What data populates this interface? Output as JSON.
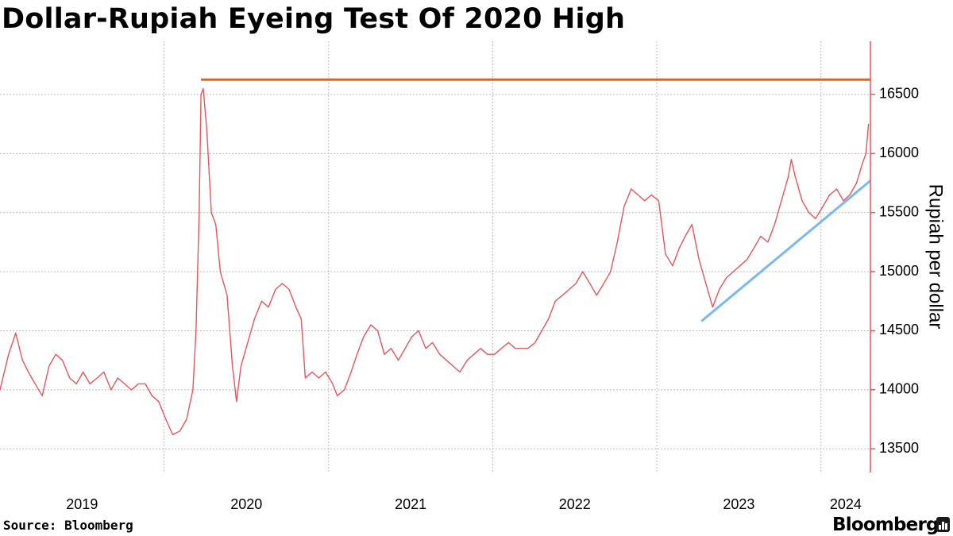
{
  "title": "Dollar-Rupiah Eyeing Test Of 2020 High",
  "source": "Source: Bloomberg",
  "brand": "Bloomberg",
  "colors": {
    "price": "#e8555a",
    "resistance": "#e8601c",
    "trend": "#79b9ef",
    "axis": "#e8555a",
    "grid": "#bdbdbd"
  },
  "chart_data": {
    "type": "line",
    "title": "Dollar-Rupiah Eyeing Test Of 2020 High",
    "xlabel": "",
    "ylabel": "Rupiah per dollar",
    "y_axis_side": "right",
    "ylim": [
      13300,
      16950
    ],
    "yticks": [
      13500,
      14000,
      14500,
      15000,
      15500,
      16000,
      16500
    ],
    "xlim": [
      "2019-01-01",
      "2024-04-20"
    ],
    "xticks": [
      "2019",
      "2020",
      "2021",
      "2022",
      "2023",
      "2024"
    ],
    "grid": true,
    "series": [
      {
        "name": "",
        "color": "#e8555a",
        "points": [
          [
            "2019-01-01",
            14000
          ],
          [
            "2019-01-20",
            14300
          ],
          [
            "2019-02-05",
            14480
          ],
          [
            "2019-02-20",
            14250
          ],
          [
            "2019-03-05",
            14150
          ],
          [
            "2019-03-20",
            14050
          ],
          [
            "2019-04-05",
            13950
          ],
          [
            "2019-04-20",
            14200
          ],
          [
            "2019-05-05",
            14300
          ],
          [
            "2019-05-20",
            14250
          ],
          [
            "2019-06-05",
            14100
          ],
          [
            "2019-06-20",
            14050
          ],
          [
            "2019-07-05",
            14150
          ],
          [
            "2019-07-20",
            14050
          ],
          [
            "2019-08-05",
            14100
          ],
          [
            "2019-08-20",
            14150
          ],
          [
            "2019-09-05",
            14000
          ],
          [
            "2019-09-20",
            14100
          ],
          [
            "2019-10-05",
            14050
          ],
          [
            "2019-10-20",
            14000
          ],
          [
            "2019-11-05",
            14050
          ],
          [
            "2019-11-20",
            14050
          ],
          [
            "2019-12-05",
            13950
          ],
          [
            "2019-12-20",
            13900
          ],
          [
            "2020-01-05",
            13750
          ],
          [
            "2020-01-20",
            13620
          ],
          [
            "2020-02-05",
            13650
          ],
          [
            "2020-02-20",
            13750
          ],
          [
            "2020-03-05",
            14000
          ],
          [
            "2020-03-12",
            14500
          ],
          [
            "2020-03-19",
            15500
          ],
          [
            "2020-03-23",
            16500
          ],
          [
            "2020-03-28",
            16550
          ],
          [
            "2020-04-05",
            16200
          ],
          [
            "2020-04-15",
            15500
          ],
          [
            "2020-04-25",
            15400
          ],
          [
            "2020-05-05",
            15000
          ],
          [
            "2020-05-20",
            14800
          ],
          [
            "2020-06-01",
            14200
          ],
          [
            "2020-06-10",
            13900
          ],
          [
            "2020-06-20",
            14200
          ],
          [
            "2020-07-05",
            14400
          ],
          [
            "2020-07-20",
            14600
          ],
          [
            "2020-08-05",
            14750
          ],
          [
            "2020-08-20",
            14700
          ],
          [
            "2020-09-05",
            14850
          ],
          [
            "2020-09-20",
            14900
          ],
          [
            "2020-10-05",
            14850
          ],
          [
            "2020-10-20",
            14700
          ],
          [
            "2020-11-01",
            14600
          ],
          [
            "2020-11-10",
            14100
          ],
          [
            "2020-11-25",
            14150
          ],
          [
            "2020-12-10",
            14100
          ],
          [
            "2020-12-25",
            14150
          ],
          [
            "2021-01-10",
            14050
          ],
          [
            "2021-01-20",
            13950
          ],
          [
            "2021-02-05",
            14000
          ],
          [
            "2021-02-20",
            14150
          ],
          [
            "2021-03-05",
            14300
          ],
          [
            "2021-03-20",
            14450
          ],
          [
            "2021-04-05",
            14550
          ],
          [
            "2021-04-20",
            14500
          ],
          [
            "2021-05-05",
            14300
          ],
          [
            "2021-05-20",
            14350
          ],
          [
            "2021-06-05",
            14250
          ],
          [
            "2021-06-20",
            14350
          ],
          [
            "2021-07-05",
            14450
          ],
          [
            "2021-07-20",
            14500
          ],
          [
            "2021-08-05",
            14350
          ],
          [
            "2021-08-20",
            14400
          ],
          [
            "2021-09-05",
            14300
          ],
          [
            "2021-09-20",
            14250
          ],
          [
            "2021-10-05",
            14200
          ],
          [
            "2021-10-20",
            14150
          ],
          [
            "2021-11-05",
            14250
          ],
          [
            "2021-11-20",
            14300
          ],
          [
            "2021-12-05",
            14350
          ],
          [
            "2021-12-20",
            14300
          ],
          [
            "2022-01-05",
            14300
          ],
          [
            "2022-01-20",
            14350
          ],
          [
            "2022-02-05",
            14400
          ],
          [
            "2022-02-20",
            14350
          ],
          [
            "2022-03-05",
            14350
          ],
          [
            "2022-03-20",
            14350
          ],
          [
            "2022-04-05",
            14400
          ],
          [
            "2022-04-20",
            14500
          ],
          [
            "2022-05-05",
            14600
          ],
          [
            "2022-05-20",
            14750
          ],
          [
            "2022-06-05",
            14800
          ],
          [
            "2022-06-20",
            14850
          ],
          [
            "2022-07-05",
            14900
          ],
          [
            "2022-07-20",
            15000
          ],
          [
            "2022-08-05",
            14900
          ],
          [
            "2022-08-20",
            14800
          ],
          [
            "2022-09-05",
            14900
          ],
          [
            "2022-09-20",
            15000
          ],
          [
            "2022-10-05",
            15250
          ],
          [
            "2022-10-20",
            15550
          ],
          [
            "2022-11-05",
            15700
          ],
          [
            "2022-11-20",
            15650
          ],
          [
            "2022-12-05",
            15600
          ],
          [
            "2022-12-20",
            15650
          ],
          [
            "2023-01-05",
            15600
          ],
          [
            "2023-01-20",
            15150
          ],
          [
            "2023-02-05",
            15050
          ],
          [
            "2023-02-20",
            15200
          ],
          [
            "2023-03-05",
            15300
          ],
          [
            "2023-03-20",
            15400
          ],
          [
            "2023-04-05",
            15100
          ],
          [
            "2023-04-20",
            14900
          ],
          [
            "2023-05-05",
            14700
          ],
          [
            "2023-05-20",
            14850
          ],
          [
            "2023-06-05",
            14950
          ],
          [
            "2023-06-20",
            15000
          ],
          [
            "2023-07-05",
            15050
          ],
          [
            "2023-07-20",
            15100
          ],
          [
            "2023-08-05",
            15200
          ],
          [
            "2023-08-20",
            15300
          ],
          [
            "2023-09-05",
            15250
          ],
          [
            "2023-09-20",
            15400
          ],
          [
            "2023-10-05",
            15600
          ],
          [
            "2023-10-20",
            15800
          ],
          [
            "2023-10-27",
            15950
          ],
          [
            "2023-11-05",
            15800
          ],
          [
            "2023-11-20",
            15600
          ],
          [
            "2023-12-05",
            15500
          ],
          [
            "2023-12-20",
            15450
          ],
          [
            "2024-01-05",
            15550
          ],
          [
            "2024-01-20",
            15650
          ],
          [
            "2024-02-05",
            15700
          ],
          [
            "2024-02-20",
            15600
          ],
          [
            "2024-03-05",
            15650
          ],
          [
            "2024-03-20",
            15750
          ],
          [
            "2024-04-01",
            15900
          ],
          [
            "2024-04-10",
            16000
          ],
          [
            "2024-04-16",
            16250
          ]
        ]
      },
      {
        "name": "",
        "color": "#e8601c",
        "points": [
          [
            "2020-03-23",
            16625
          ],
          [
            "2024-04-20",
            16625
          ]
        ]
      },
      {
        "name": "",
        "color": "#79b9ef",
        "points": [
          [
            "2023-04-10",
            14580
          ],
          [
            "2024-04-20",
            15770
          ]
        ]
      }
    ]
  }
}
